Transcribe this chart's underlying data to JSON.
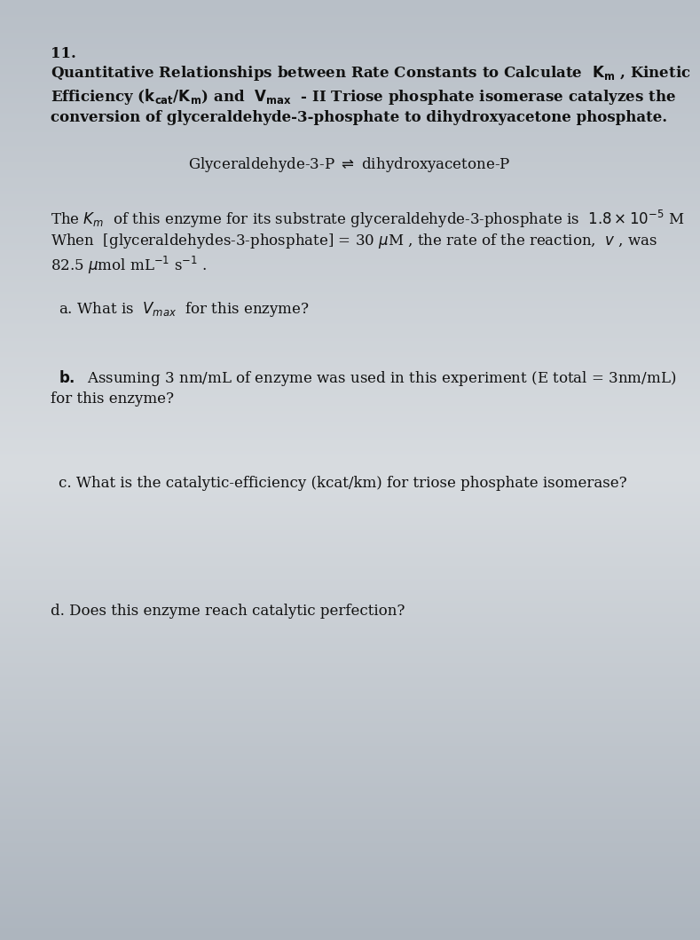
{
  "bg_top": "#b8bfc7",
  "bg_mid": "#d8dce0",
  "bg_bot": "#adb5be",
  "text_color": "#111111",
  "number": "11.",
  "reaction": "Glyceraldehyde-3-P $\\rightleftharpoons$ dihydroxyacetone-P",
  "km_line": "The $K_m$  of this enzyme for its substrate glyceraldehyde-3-phosphate is  $1.8 \\times 10^{-5}$ M",
  "when_line": "When  [glyceraldehydes-3-phosphate] = 30 $\\mu$M , the rate of the reaction,  $v$ , was",
  "rate_line": "82.5 $\\mu$mol mL$^{-1}$ s$^{-1}$ .",
  "q_a": "a. What is  $V_{max}$  for this enzyme?",
  "q_b1": "b.  Assuming 3 nm/mL of enzyme was used in this experiment (E total = 3nm/mL)",
  "q_b2": "for this enzyme?",
  "q_c": "c. What is the catalytic­efficiency (kcat/km) for triose phosphate isomerase?",
  "q_d": "d. Does this enzyme reach catalytic perfection?"
}
